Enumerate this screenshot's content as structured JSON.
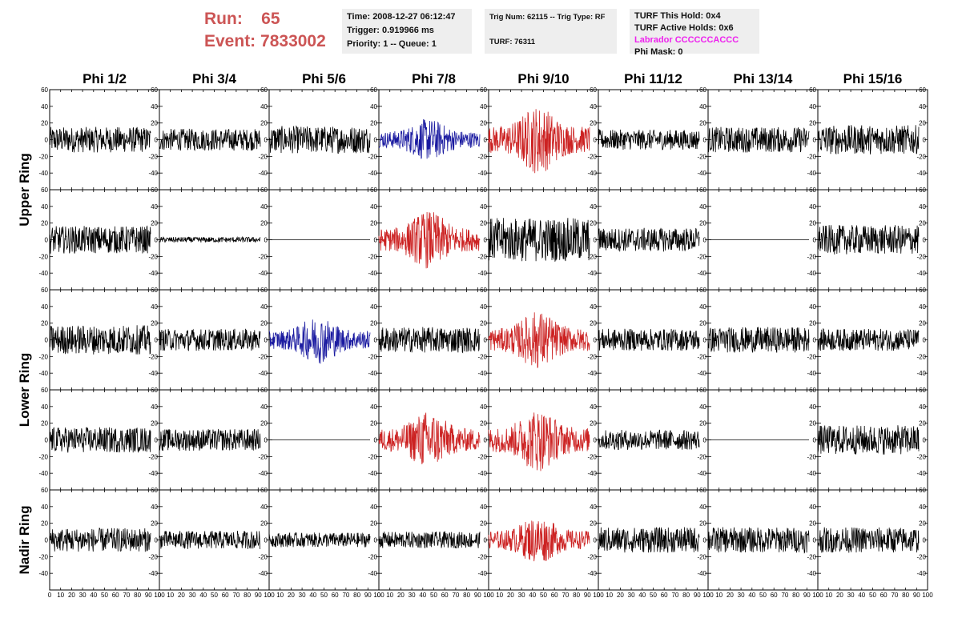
{
  "header": {
    "run_label": "Run:",
    "run_value": "65",
    "event_label": "Event:",
    "event_value": "7833002"
  },
  "info": {
    "time": "Time: 2008-12-27 06:12:47",
    "trigger": "Trigger: 0.919966 ms",
    "priority": "Priority: 1 -- Queue: 1",
    "trig": "Trig Num: 62115 -- Trig Type: RF",
    "turf": "TURF: 76311",
    "turf_hold": "TURF This Hold: 0x4",
    "turf_active": "TURF Active Holds: 0x6",
    "labrador": "Labrador CCCCCCACCC",
    "phi_mask": "Phi Mask: 0"
  },
  "colors": {
    "black": "#000000",
    "blue": "#1a1aa0",
    "red": "#cc2222",
    "title_red": "#cc5555",
    "labrador": "#ee22ee"
  },
  "chart_data": {
    "type": "line",
    "columns": [
      "Phi 1/2",
      "Phi 3/4",
      "Phi 5/6",
      "Phi 7/8",
      "Phi 9/10",
      "Phi 11/12",
      "Phi 13/14",
      "Phi 15/16"
    ],
    "rows": [
      "Upper Ring",
      "Lower Ring",
      "Nadir Ring"
    ],
    "ring_label_spans": [
      2,
      2,
      1
    ],
    "xlim": [
      0,
      100
    ],
    "ylim": [
      -60,
      60
    ],
    "xticks": [
      0,
      10,
      20,
      30,
      40,
      50,
      60,
      70,
      80,
      90,
      100
    ],
    "yticks": [
      -40,
      -20,
      0,
      20,
      40,
      60
    ],
    "x_tick_labels_shown": [
      "0",
      "10",
      "20",
      "30",
      "40",
      "50",
      "60",
      "70",
      "80",
      "90",
      "100"
    ],
    "waveform_x_range": [
      0,
      92
    ],
    "panels": [
      [
        "black",
        "black",
        "black",
        "blue",
        "red",
        "black",
        "black",
        "black"
      ],
      [
        "black",
        "black",
        "black",
        "red",
        "black",
        "black",
        "black",
        "black"
      ],
      [
        "black",
        "black",
        "blue",
        "black",
        "red",
        "black",
        "black",
        "black"
      ],
      [
        "black",
        "black",
        "black",
        "red",
        "red",
        "black",
        "black",
        "black"
      ],
      [
        "black",
        "black",
        "black",
        "black",
        "red",
        "black",
        "black",
        "black"
      ]
    ],
    "amplitudes": [
      [
        14,
        12,
        15,
        16,
        26,
        11,
        14,
        16
      ],
      [
        15,
        3,
        0,
        22,
        24,
        13,
        0,
        16
      ],
      [
        16,
        12,
        18,
        14,
        22,
        12,
        14,
        12
      ],
      [
        14,
        12,
        0,
        22,
        24,
        11,
        0,
        16
      ],
      [
        13,
        10,
        8,
        9,
        18,
        14,
        14,
        14
      ]
    ]
  }
}
